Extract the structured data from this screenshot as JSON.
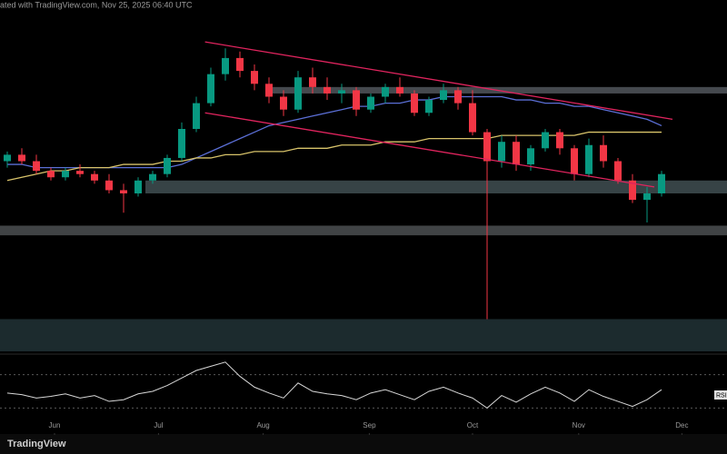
{
  "header": "ated with TradingView.com, Nov 25, 2025 06:40 UTC",
  "logo": "TradingView",
  "chart_data": {
    "type": "candlestick",
    "ylim": [
      -10,
      100
    ],
    "xlim": [
      -0.5,
      49.5
    ],
    "xticks": [
      {
        "value": 3.25,
        "label": "Jun"
      },
      {
        "value": 10.4,
        "label": "Jul"
      },
      {
        "value": 17.6,
        "label": "Aug"
      },
      {
        "value": 24.9,
        "label": "Sep"
      },
      {
        "value": 32,
        "label": "Oct"
      },
      {
        "value": 39.3,
        "label": "Nov"
      },
      {
        "value": 46.4,
        "label": "Dec"
      }
    ],
    "up_color": "#089981",
    "down_color": "#f23645",
    "open": [
      50,
      52,
      50,
      47,
      45,
      47,
      46,
      44,
      41,
      40,
      44,
      46,
      51,
      60,
      68,
      77,
      82,
      78,
      74,
      70,
      66,
      76,
      73,
      71,
      72,
      66,
      70,
      73,
      71,
      65,
      69,
      72,
      68,
      59,
      50,
      56,
      49,
      54,
      59,
      54,
      46,
      55,
      50,
      44,
      38,
      40
    ],
    "high": [
      53,
      54,
      52,
      48,
      48,
      49,
      47,
      46,
      43,
      45,
      47,
      52,
      62,
      70,
      79,
      85,
      84,
      80,
      76,
      72,
      78,
      79,
      76,
      74,
      73,
      71,
      74,
      76,
      72,
      70,
      74,
      73,
      72,
      60,
      58,
      58,
      55,
      60,
      60,
      55,
      57,
      58,
      51,
      46,
      42,
      47
    ],
    "low": [
      48,
      49,
      46,
      44,
      44,
      45,
      43,
      40,
      34,
      39,
      43,
      45,
      50,
      59,
      67,
      75,
      76,
      72,
      68,
      64,
      65,
      71,
      69,
      68,
      64,
      65,
      68,
      70,
      64,
      64,
      68,
      66,
      58,
      1,
      48,
      47,
      47,
      53,
      52,
      44,
      45,
      48,
      43,
      37,
      31,
      39
    ],
    "close": [
      52,
      50,
      47,
      45,
      47,
      46,
      44,
      41,
      40,
      44,
      46,
      51,
      60,
      68,
      77,
      82,
      78,
      74,
      70,
      66,
      76,
      73,
      71,
      72,
      66,
      70,
      73,
      71,
      65,
      69,
      72,
      68,
      59,
      50,
      56,
      49,
      54,
      59,
      54,
      46,
      55,
      50,
      44,
      38,
      40,
      46
    ],
    "lines": [
      {
        "color": "#5b6fd6",
        "values": [
          49,
          49,
          48,
          48,
          48,
          48,
          48,
          48,
          48,
          48,
          48,
          48,
          49,
          51,
          53,
          55,
          57,
          59,
          61,
          62,
          63,
          64,
          65,
          66,
          67,
          67,
          68,
          68,
          69,
          69,
          70,
          70,
          70,
          70,
          70,
          69,
          69,
          68,
          68,
          67,
          67,
          66,
          65,
          64,
          63,
          61
        ]
      },
      {
        "color": "#d8c36a",
        "values": [
          44,
          45,
          46,
          47,
          47,
          48,
          48,
          48,
          49,
          49,
          49,
          50,
          50,
          51,
          51,
          52,
          52,
          53,
          53,
          53,
          54,
          54,
          54,
          55,
          55,
          55,
          56,
          56,
          56,
          57,
          57,
          57,
          57,
          57,
          58,
          58,
          58,
          58,
          58,
          58,
          59,
          59,
          59,
          59,
          59,
          59
        ]
      }
    ],
    "trendlines": [
      {
        "color": "#e0245e",
        "x": [
          13.6,
          45.75
        ],
        "values": [
          87,
          63
        ]
      },
      {
        "color": "#e0245e",
        "x": [
          13.6,
          44.5
        ],
        "values": [
          65,
          42
        ]
      }
    ],
    "zones": [
      {
        "x": 18.25,
        "color": "#5c6268",
        "values": [
          71,
          73
        ]
      },
      {
        "x": 9.5,
        "color": "#4a5a5e",
        "values": [
          40,
          44
        ]
      },
      {
        "x": -0.5,
        "color": "#55595c",
        "values": [
          27,
          30
        ]
      },
      {
        "x": -0.5,
        "color": "#26393d",
        "values": [
          -9,
          1
        ]
      }
    ],
    "rsi": {
      "name": "RSI",
      "color": "#d8d8d8",
      "ylim": [
        0,
        100
      ],
      "levels": [
        30,
        70
      ],
      "values": [
        48,
        46,
        42,
        44,
        47,
        42,
        45,
        38,
        40,
        47,
        50,
        57,
        66,
        75,
        80,
        85,
        68,
        55,
        48,
        42,
        60,
        50,
        47,
        45,
        40,
        48,
        52,
        46,
        40,
        50,
        55,
        48,
        42,
        30,
        45,
        37,
        47,
        55,
        48,
        38,
        52,
        44,
        38,
        32,
        40,
        52
      ]
    }
  }
}
